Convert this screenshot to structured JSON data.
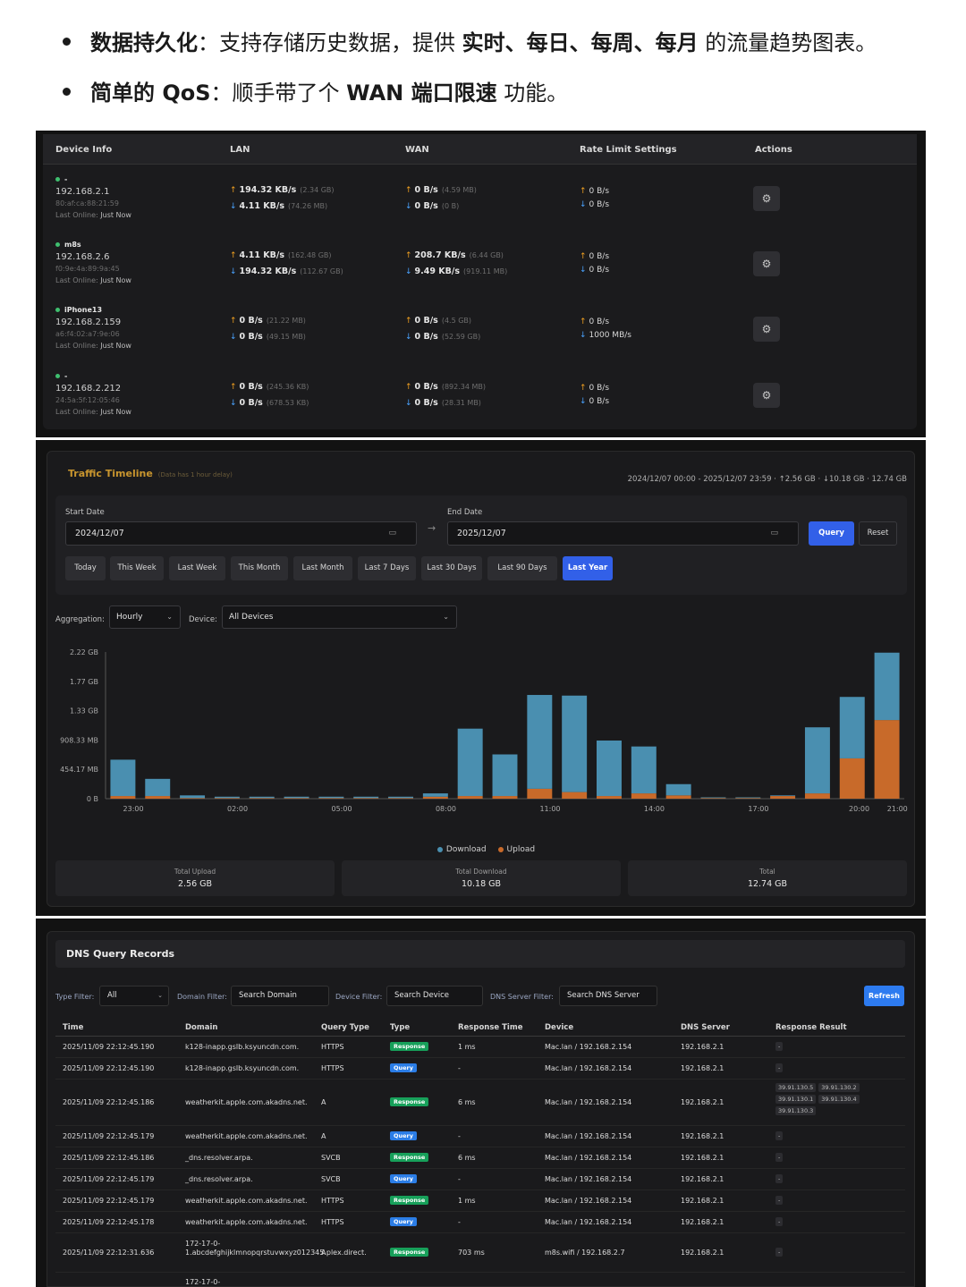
{
  "bullets": [
    {
      "b1": "数据持久化",
      "t1": "：支持存储历史数据，提供 ",
      "b2": "实时、每日、每周、每月",
      "t2": " 的流量趋势图表。"
    },
    {
      "b1": "简单的 QoS",
      "t1": "：顺手带了个 ",
      "b2": "WAN 端口限速",
      "t2": " 功能。"
    }
  ],
  "devices": {
    "headers": [
      "Device Info",
      "LAN",
      "WAN",
      "Rate Limit Settings",
      "Actions"
    ],
    "action_icon": "gear-icon",
    "rows": [
      {
        "name": "-",
        "ip": "192.168.2.1",
        "mac": "80:af:ca:88:21:59",
        "online_label": "Last Online:",
        "online": "Just Now",
        "lan_up": "194.32 KB/s",
        "lan_up_total": "(2.34 GB)",
        "lan_down": "4.11 KB/s",
        "lan_down_total": "(74.26 MB)",
        "wan_up": "0 B/s",
        "wan_up_total": "(4.59 MB)",
        "wan_down": "0 B/s",
        "wan_down_total": "(0 B)",
        "limit_up": "0 B/s",
        "limit_down": "0 B/s"
      },
      {
        "name": "m8s",
        "ip": "192.168.2.6",
        "mac": "f0:9e:4a:89:9a:45",
        "online_label": "Last Online:",
        "online": "Just Now",
        "lan_up": "4.11 KB/s",
        "lan_up_total": "(162.48 GB)",
        "lan_down": "194.32 KB/s",
        "lan_down_total": "(112.67 GB)",
        "wan_up": "208.7 KB/s",
        "wan_up_total": "(6.44 GB)",
        "wan_down": "9.49 KB/s",
        "wan_down_total": "(919.11 MB)",
        "limit_up": "0 B/s",
        "limit_down": "0 B/s"
      },
      {
        "name": "iPhone13",
        "ip": "192.168.2.159",
        "mac": "a6:f4:02:a7:9e:06",
        "online_label": "Last Online:",
        "online": "Just Now",
        "lan_up": "0 B/s",
        "lan_up_total": "(21.22 MB)",
        "lan_down": "0 B/s",
        "lan_down_total": "(49.15 MB)",
        "wan_up": "0 B/s",
        "wan_up_total": "(4.5 GB)",
        "wan_down": "0 B/s",
        "wan_down_total": "(52.59 GB)",
        "limit_up": "0 B/s",
        "limit_down": "1000 MB/s"
      },
      {
        "name": "-",
        "ip": "192.168.2.212",
        "mac": "24:5a:5f:12:05:46",
        "online_label": "Last Online:",
        "online": "Just Now",
        "lan_up": "0 B/s",
        "lan_up_total": "(245.36 KB)",
        "lan_down": "0 B/s",
        "lan_down_total": "(678.53 KB)",
        "wan_up": "0 B/s",
        "wan_up_total": "(892.34 MB)",
        "wan_down": "0 B/s",
        "wan_down_total": "(28.31 MB)",
        "limit_up": "0 B/s",
        "limit_down": "0 B/s"
      }
    ]
  },
  "timeline": {
    "title": "Traffic Timeline",
    "delay_note": "(Data has 1 hour delay)",
    "summary": "2024/12/07 00:00 - 2025/12/07 23:59 · ↑2.56 GB · ↓10.18 GB · 12.74 GB",
    "start_label": "Start Date",
    "start_value": "2024/12/07",
    "end_label": "End Date",
    "end_value": "2025/12/07",
    "query_label": "Query",
    "reset_label": "Reset",
    "presets": [
      "Today",
      "This Week",
      "Last Week",
      "This Month",
      "Last Month",
      "Last 7 Days",
      "Last 30 Days",
      "Last 90 Days",
      "Last Year"
    ],
    "active_preset": "Last Year",
    "aggregation_label": "Aggregation:",
    "aggregation_value": "Hourly",
    "device_label": "Device:",
    "device_value": "All Devices",
    "legend_download": "Download",
    "legend_upload": "Upload",
    "total_upload_label": "Total Upload",
    "total_upload": "2.56 GB",
    "total_download_label": "Total Download",
    "total_download": "10.18 GB",
    "total_label": "Total",
    "total": "12.74 GB",
    "colors": {
      "download": "#4a8fb0",
      "upload": "#c86a2a"
    }
  },
  "chart_data": {
    "type": "bar",
    "stacked": true,
    "y_ticks": [
      "0 B",
      "454.17 MB",
      "908.33 MB",
      "1.33 GB",
      "1.77 GB",
      "2.22 GB"
    ],
    "y_max_gb": 2.22,
    "x_tick_labels": [
      {
        "bar": 0.3,
        "label": "23:00"
      },
      {
        "bar": 3.3,
        "label": "02:00"
      },
      {
        "bar": 6.3,
        "label": "05:00"
      },
      {
        "bar": 9.3,
        "label": "08:00"
      },
      {
        "bar": 12.3,
        "label": "11:00"
      },
      {
        "bar": 15.3,
        "label": "14:00"
      },
      {
        "bar": 18.3,
        "label": "17:00"
      },
      {
        "bar": 21.2,
        "label": "20:00"
      },
      {
        "bar": 22.3,
        "label": "21:00"
      }
    ],
    "series": [
      {
        "name": "Download",
        "values": [
          0.55,
          0.26,
          0.04,
          0.02,
          0.02,
          0.02,
          0.02,
          0.02,
          0.02,
          0.05,
          1.02,
          0.63,
          1.42,
          1.46,
          0.84,
          0.71,
          0.17,
          0.01,
          0.01,
          0.01,
          1.0,
          0.93,
          1.02
        ]
      },
      {
        "name": "Upload",
        "values": [
          0.04,
          0.04,
          0.01,
          0.01,
          0.01,
          0.01,
          0.01,
          0.01,
          0.01,
          0.03,
          0.04,
          0.04,
          0.15,
          0.1,
          0.04,
          0.08,
          0.05,
          0.01,
          0.01,
          0.04,
          0.08,
          0.61,
          1.19
        ]
      }
    ]
  },
  "dns": {
    "title": "DNS Query Records",
    "type_filter_label": "Type Filter:",
    "type_filter_value": "All",
    "domain_filter_label": "Domain Filter:",
    "domain_filter_placeholder": "Search Domain",
    "device_filter_label": "Device Filter:",
    "device_filter_placeholder": "Search Device",
    "server_filter_label": "DNS Server Filter:",
    "server_filter_placeholder": "Search DNS Server",
    "refresh_label": "Refresh",
    "columns": [
      "Time",
      "Domain",
      "Query Type",
      "Type",
      "Response Time",
      "Device",
      "DNS Server",
      "Response Result"
    ],
    "rows": [
      {
        "time": "2025/11/09 22:12:45.190",
        "domain": "k128-inapp.gslb.ksyuncdn.com.",
        "qtype": "HTTPS",
        "type": "Response",
        "rt": "1 ms",
        "device": "Mac.lan / 192.168.2.154",
        "server": "192.168.2.1",
        "result": [
          "-"
        ]
      },
      {
        "time": "2025/11/09 22:12:45.190",
        "domain": "k128-inapp.gslb.ksyuncdn.com.",
        "qtype": "HTTPS",
        "type": "Query",
        "rt": "-",
        "device": "Mac.lan / 192.168.2.154",
        "server": "192.168.2.1",
        "result": [
          "-"
        ]
      },
      {
        "time": "2025/11/09 22:12:45.186",
        "domain": "weatherkit.apple.com.akadns.net.",
        "qtype": "A",
        "type": "Response",
        "rt": "6 ms",
        "device": "Mac.lan / 192.168.2.154",
        "server": "192.168.2.1",
        "result": [
          "39.91.130.5",
          "39.91.130.2",
          "39.91.130.1",
          "39.91.130.4",
          "39.91.130.3"
        ]
      },
      {
        "time": "2025/11/09 22:12:45.179",
        "domain": "weatherkit.apple.com.akadns.net.",
        "qtype": "A",
        "type": "Query",
        "rt": "-",
        "device": "Mac.lan / 192.168.2.154",
        "server": "192.168.2.1",
        "result": [
          "-"
        ]
      },
      {
        "time": "2025/11/09 22:12:45.186",
        "domain": "_dns.resolver.arpa.",
        "qtype": "SVCB",
        "type": "Response",
        "rt": "6 ms",
        "device": "Mac.lan / 192.168.2.154",
        "server": "192.168.2.1",
        "result": [
          "-"
        ]
      },
      {
        "time": "2025/11/09 22:12:45.179",
        "domain": "_dns.resolver.arpa.",
        "qtype": "SVCB",
        "type": "Query",
        "rt": "-",
        "device": "Mac.lan / 192.168.2.154",
        "server": "192.168.2.1",
        "result": [
          "-"
        ]
      },
      {
        "time": "2025/11/09 22:12:45.179",
        "domain": "weatherkit.apple.com.akadns.net.",
        "qtype": "HTTPS",
        "type": "Response",
        "rt": "1 ms",
        "device": "Mac.lan / 192.168.2.154",
        "server": "192.168.2.1",
        "result": [
          "-"
        ]
      },
      {
        "time": "2025/11/09 22:12:45.178",
        "domain": "weatherkit.apple.com.akadns.net.",
        "qtype": "HTTPS",
        "type": "Query",
        "rt": "-",
        "device": "Mac.lan / 192.168.2.154",
        "server": "192.168.2.1",
        "result": [
          "-"
        ]
      },
      {
        "time": "2025/11/09 22:12:31.636",
        "domain": "172-17-0-1.abcdefghijklmnopqrstuvwxyz012345.plex.direct.",
        "qtype": "A",
        "type": "Response",
        "rt": "703 ms",
        "device": "m8s.wifi / 192.168.2.7",
        "server": "192.168.2.1",
        "result": [
          "-"
        ]
      },
      {
        "time": "",
        "domain": "172-17-0-",
        "qtype": "",
        "type": "",
        "rt": "",
        "device": "",
        "server": "",
        "result": []
      }
    ]
  }
}
